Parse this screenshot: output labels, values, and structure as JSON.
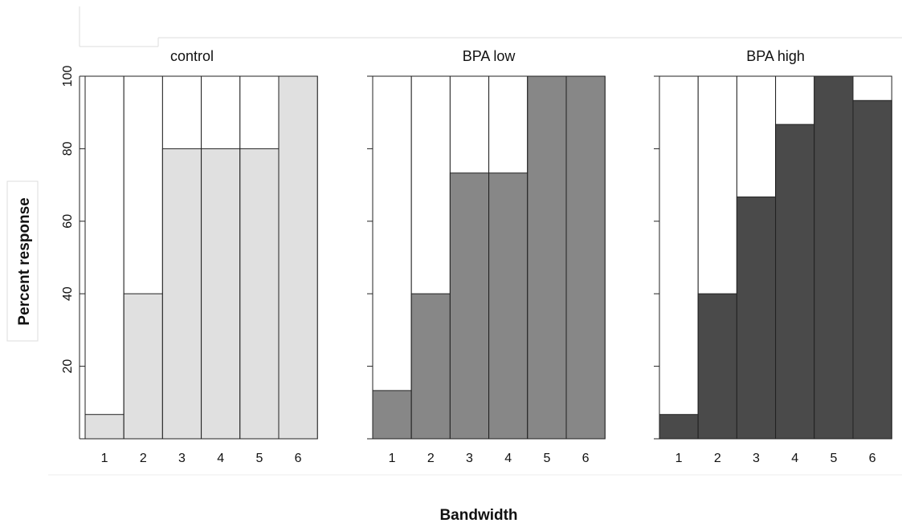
{
  "chart_data": {
    "type": "bar",
    "xlabel": "Bandwidth",
    "ylabel": "Percent response",
    "ylim": [
      0,
      100
    ],
    "yticks": [
      20,
      40,
      60,
      80,
      100
    ],
    "categories": [
      "1",
      "2",
      "3",
      "4",
      "5",
      "6"
    ],
    "grid": false,
    "panels": [
      {
        "name": "control",
        "color": "#e0e0e0",
        "values": [
          6.7,
          40,
          80,
          80,
          80,
          100
        ]
      },
      {
        "name": "BPA low",
        "color": "#878787",
        "values": [
          13.3,
          40,
          73.3,
          73.3,
          100,
          100
        ]
      },
      {
        "name": "BPA high",
        "color": "#4a4a4a",
        "values": [
          6.7,
          40,
          66.7,
          86.7,
          100,
          93.3
        ]
      }
    ]
  }
}
